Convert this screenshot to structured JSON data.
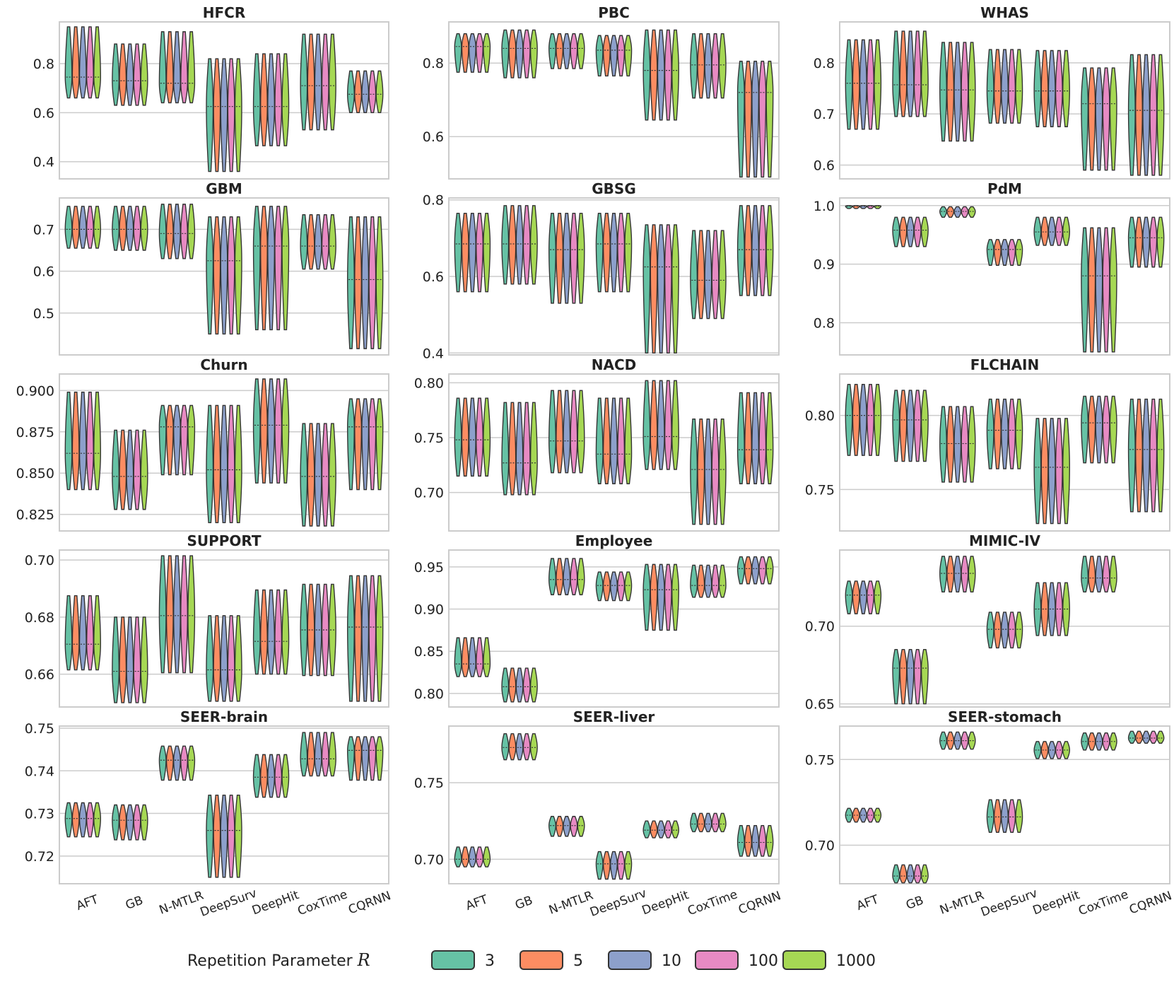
{
  "figure": {
    "legend_title": "Repetition Parameter ",
    "legend_symbol": "R",
    "series": [
      {
        "name": "3",
        "color": "#66c2a5"
      },
      {
        "name": "5",
        "color": "#fc8d62"
      },
      {
        "name": "10",
        "color": "#8da0cb"
      },
      {
        "name": "100",
        "color": "#e78ac3"
      },
      {
        "name": "1000",
        "color": "#a6d854"
      }
    ],
    "categories": [
      "AFT",
      "GB",
      "N-MTLR",
      "DeepSurv",
      "DeepHit",
      "CoxTime",
      "CQRNN"
    ]
  },
  "chart_data": [
    {
      "type": "violin",
      "title": "HFCR",
      "ylim": [
        0.33,
        0.97
      ],
      "yticks": [
        0.4,
        0.6,
        0.8
      ],
      "yticklabels": [
        "0.4",
        "0.6",
        "0.8"
      ],
      "ylabel": "",
      "violins": [
        {
          "min": 0.66,
          "max": 0.95,
          "median": 0.745
        },
        {
          "min": 0.63,
          "max": 0.88,
          "median": 0.73
        },
        {
          "min": 0.64,
          "max": 0.93,
          "median": 0.72
        },
        {
          "min": 0.36,
          "max": 0.82,
          "median": 0.625
        },
        {
          "min": 0.465,
          "max": 0.84,
          "median": 0.625
        },
        {
          "min": 0.53,
          "max": 0.92,
          "median": 0.71
        },
        {
          "min": 0.6,
          "max": 0.77,
          "median": 0.675
        }
      ]
    },
    {
      "type": "violin",
      "title": "PBC",
      "ylim": [
        0.485,
        0.912
      ],
      "yticks": [
        0.6,
        0.8
      ],
      "yticklabels": [
        "0.6",
        "0.8"
      ],
      "ylabel": "",
      "violins": [
        {
          "min": 0.775,
          "max": 0.88,
          "median": 0.845
        },
        {
          "min": 0.76,
          "max": 0.89,
          "median": 0.84
        },
        {
          "min": 0.785,
          "max": 0.88,
          "median": 0.84
        },
        {
          "min": 0.765,
          "max": 0.875,
          "median": 0.835
        },
        {
          "min": 0.645,
          "max": 0.89,
          "median": 0.78
        },
        {
          "min": 0.705,
          "max": 0.88,
          "median": 0.795
        },
        {
          "min": 0.49,
          "max": 0.805,
          "median": 0.72
        }
      ]
    },
    {
      "type": "violin",
      "title": "WHAS",
      "ylim": [
        0.573,
        0.88
      ],
      "yticks": [
        0.6,
        0.7,
        0.8
      ],
      "yticklabels": [
        "0.6",
        "0.7",
        "0.8"
      ],
      "ylabel": "",
      "violins": [
        {
          "min": 0.67,
          "max": 0.845,
          "median": 0.76
        },
        {
          "min": 0.695,
          "max": 0.862,
          "median": 0.757
        },
        {
          "min": 0.647,
          "max": 0.84,
          "median": 0.747
        },
        {
          "min": 0.682,
          "max": 0.826,
          "median": 0.745
        },
        {
          "min": 0.675,
          "max": 0.824,
          "median": 0.745
        },
        {
          "min": 0.59,
          "max": 0.79,
          "median": 0.72
        },
        {
          "min": 0.58,
          "max": 0.816,
          "median": 0.707
        }
      ]
    },
    {
      "type": "violin",
      "title": "GBM",
      "ylim": [
        0.4,
        0.775
      ],
      "yticks": [
        0.5,
        0.6,
        0.7
      ],
      "yticklabels": [
        "0.5",
        "0.6",
        "0.7"
      ],
      "ylabel": "",
      "violins": [
        {
          "min": 0.655,
          "max": 0.755,
          "median": 0.7
        },
        {
          "min": 0.65,
          "max": 0.755,
          "median": 0.7
        },
        {
          "min": 0.63,
          "max": 0.76,
          "median": 0.69
        },
        {
          "min": 0.45,
          "max": 0.73,
          "median": 0.625
        },
        {
          "min": 0.46,
          "max": 0.755,
          "median": 0.66
        },
        {
          "min": 0.605,
          "max": 0.735,
          "median": 0.66
        },
        {
          "min": 0.415,
          "max": 0.73,
          "median": 0.58
        }
      ]
    },
    {
      "type": "violin",
      "title": "GBSG",
      "ylim": [
        0.395,
        0.805
      ],
      "yticks": [
        0.4,
        0.6,
        0.8
      ],
      "yticklabels": [
        "0.4",
        "0.6",
        "0.8"
      ],
      "ylabel": "",
      "violins": [
        {
          "min": 0.56,
          "max": 0.765,
          "median": 0.685
        },
        {
          "min": 0.58,
          "max": 0.785,
          "median": 0.685
        },
        {
          "min": 0.53,
          "max": 0.765,
          "median": 0.67
        },
        {
          "min": 0.56,
          "max": 0.765,
          "median": 0.685
        },
        {
          "min": 0.4,
          "max": 0.735,
          "median": 0.625
        },
        {
          "min": 0.49,
          "max": 0.72,
          "median": 0.59
        },
        {
          "min": 0.55,
          "max": 0.785,
          "median": 0.67
        }
      ]
    },
    {
      "type": "violin",
      "title": "PdM",
      "ylim": [
        0.745,
        1.013
      ],
      "yticks": [
        0.8,
        0.9,
        1.0
      ],
      "yticklabels": [
        "0.8",
        "0.9",
        "1.0"
      ],
      "ylabel": "",
      "violins": [
        {
          "min": 0.995,
          "max": 1.0,
          "median": 0.999
        },
        {
          "min": 0.93,
          "max": 0.98,
          "median": 0.958
        },
        {
          "min": 0.98,
          "max": 0.998,
          "median": 0.99
        },
        {
          "min": 0.898,
          "max": 0.942,
          "median": 0.925
        },
        {
          "min": 0.932,
          "max": 0.98,
          "median": 0.955
        },
        {
          "min": 0.75,
          "max": 0.962,
          "median": 0.88
        },
        {
          "min": 0.895,
          "max": 0.98,
          "median": 0.945
        }
      ]
    },
    {
      "type": "violin",
      "title": "Churn",
      "ylim": [
        0.815,
        0.91
      ],
      "yticks": [
        0.825,
        0.85,
        0.875,
        0.9
      ],
      "yticklabels": [
        "0.825",
        "0.850",
        "0.875",
        "0.900"
      ],
      "ylabel": "",
      "violins": [
        {
          "min": 0.84,
          "max": 0.899,
          "median": 0.862
        },
        {
          "min": 0.828,
          "max": 0.876,
          "median": 0.848
        },
        {
          "min": 0.849,
          "max": 0.891,
          "median": 0.878
        },
        {
          "min": 0.82,
          "max": 0.891,
          "median": 0.852
        },
        {
          "min": 0.844,
          "max": 0.907,
          "median": 0.879
        },
        {
          "min": 0.818,
          "max": 0.88,
          "median": 0.848
        },
        {
          "min": 0.84,
          "max": 0.895,
          "median": 0.878
        }
      ]
    },
    {
      "type": "violin",
      "title": "NACD",
      "ylim": [
        0.665,
        0.808
      ],
      "yticks": [
        0.7,
        0.75,
        0.8
      ],
      "yticklabels": [
        "0.70",
        "0.75",
        "0.80"
      ],
      "ylabel": "",
      "violins": [
        {
          "min": 0.715,
          "max": 0.786,
          "median": 0.748
        },
        {
          "min": 0.698,
          "max": 0.782,
          "median": 0.727
        },
        {
          "min": 0.718,
          "max": 0.793,
          "median": 0.747
        },
        {
          "min": 0.708,
          "max": 0.786,
          "median": 0.735
        },
        {
          "min": 0.721,
          "max": 0.802,
          "median": 0.751
        },
        {
          "min": 0.671,
          "max": 0.767,
          "median": 0.721
        },
        {
          "min": 0.708,
          "max": 0.791,
          "median": 0.739
        }
      ]
    },
    {
      "type": "violin",
      "title": "FLCHAIN",
      "ylim": [
        0.722,
        0.828
      ],
      "yticks": [
        0.75,
        0.8
      ],
      "yticklabels": [
        "0.75",
        "0.80"
      ],
      "ylabel": "",
      "violins": [
        {
          "min": 0.773,
          "max": 0.821,
          "median": 0.8
        },
        {
          "min": 0.769,
          "max": 0.817,
          "median": 0.797
        },
        {
          "min": 0.755,
          "max": 0.806,
          "median": 0.781
        },
        {
          "min": 0.764,
          "max": 0.811,
          "median": 0.79
        },
        {
          "min": 0.727,
          "max": 0.798,
          "median": 0.765
        },
        {
          "min": 0.768,
          "max": 0.813,
          "median": 0.795
        },
        {
          "min": 0.735,
          "max": 0.811,
          "median": 0.777
        }
      ]
    },
    {
      "type": "violin",
      "title": "SUPPORT",
      "ylim": [
        0.6485,
        0.7035
      ],
      "yticks": [
        0.66,
        0.68,
        0.7
      ],
      "yticklabels": [
        "0.66",
        "0.68",
        "0.70"
      ],
      "ylabel": "",
      "violins": [
        {
          "min": 0.6615,
          "max": 0.6875,
          "median": 0.6705
        },
        {
          "min": 0.65,
          "max": 0.68,
          "median": 0.661
        },
        {
          "min": 0.6605,
          "max": 0.7015,
          "median": 0.6805
        },
        {
          "min": 0.6505,
          "max": 0.6805,
          "median": 0.6615
        },
        {
          "min": 0.66,
          "max": 0.6895,
          "median": 0.6715
        },
        {
          "min": 0.6595,
          "max": 0.6915,
          "median": 0.6755
        },
        {
          "min": 0.6505,
          "max": 0.6945,
          "median": 0.6765
        }
      ]
    },
    {
      "type": "violin",
      "title": "Employee",
      "ylim": [
        0.784,
        0.97
      ],
      "yticks": [
        0.8,
        0.85,
        0.9,
        0.95
      ],
      "yticklabels": [
        "0.80",
        "0.85",
        "0.90",
        "0.95"
      ],
      "ylabel": "",
      "violins": [
        {
          "min": 0.82,
          "max": 0.866,
          "median": 0.835
        },
        {
          "min": 0.79,
          "max": 0.83,
          "median": 0.808
        },
        {
          "min": 0.917,
          "max": 0.96,
          "median": 0.935
        },
        {
          "min": 0.91,
          "max": 0.944,
          "median": 0.928
        },
        {
          "min": 0.875,
          "max": 0.953,
          "median": 0.923
        },
        {
          "min": 0.914,
          "max": 0.952,
          "median": 0.928
        },
        {
          "min": 0.93,
          "max": 0.962,
          "median": 0.948
        }
      ]
    },
    {
      "type": "violin",
      "title": "MIMIC-IV",
      "ylim": [
        0.648,
        0.749
      ],
      "yticks": [
        0.65,
        0.7
      ],
      "yticklabels": [
        "0.65",
        "0.70"
      ],
      "ylabel": "",
      "violins": [
        {
          "min": 0.708,
          "max": 0.729,
          "median": 0.72
        },
        {
          "min": 0.65,
          "max": 0.685,
          "median": 0.673
        },
        {
          "min": 0.722,
          "max": 0.745,
          "median": 0.734
        },
        {
          "min": 0.686,
          "max": 0.709,
          "median": 0.698
        },
        {
          "min": 0.694,
          "max": 0.728,
          "median": 0.711
        },
        {
          "min": 0.722,
          "max": 0.745,
          "median": 0.731
        }
      ]
    },
    {
      "type": "violin",
      "title": "SEER-brain",
      "ylim": [
        0.7135,
        0.7505
      ],
      "yticks": [
        0.72,
        0.73,
        0.74,
        0.75
      ],
      "yticklabels": [
        "0.72",
        "0.73",
        "0.74",
        "0.75"
      ],
      "ylabel": "",
      "violins": [
        {
          "min": 0.7245,
          "max": 0.7325,
          "median": 0.7288
        },
        {
          "min": 0.7238,
          "max": 0.732,
          "median": 0.7284
        },
        {
          "min": 0.7378,
          "max": 0.7458,
          "median": 0.7425
        },
        {
          "min": 0.715,
          "max": 0.7343,
          "median": 0.726
        },
        {
          "min": 0.7338,
          "max": 0.7438,
          "median": 0.7385
        },
        {
          "min": 0.7388,
          "max": 0.749,
          "median": 0.7428
        },
        {
          "min": 0.7378,
          "max": 0.748,
          "median": 0.7448
        }
      ]
    },
    {
      "type": "violin",
      "title": "SEER-liver",
      "ylim": [
        0.684,
        0.787
      ],
      "yticks": [
        0.7,
        0.75
      ],
      "yticklabels": [
        "0.70",
        "0.75"
      ],
      "ylabel": "",
      "violins": [
        {
          "min": 0.695,
          "max": 0.708,
          "median": 0.7
        },
        {
          "min": 0.765,
          "max": 0.782,
          "median": 0.773
        },
        {
          "min": 0.715,
          "max": 0.728,
          "median": 0.722
        },
        {
          "min": 0.687,
          "max": 0.705,
          "median": 0.697
        },
        {
          "min": 0.714,
          "max": 0.725,
          "median": 0.719
        },
        {
          "min": 0.718,
          "max": 0.73,
          "median": 0.723
        },
        {
          "min": 0.702,
          "max": 0.722,
          "median": 0.711
        }
      ]
    },
    {
      "type": "violin",
      "title": "SEER-stomach",
      "ylim": [
        0.6775,
        0.7695
      ],
      "yticks": [
        0.7,
        0.75
      ],
      "yticklabels": [
        "0.70",
        "0.75"
      ],
      "ylabel": "",
      "violins": [
        {
          "min": 0.7135,
          "max": 0.7215,
          "median": 0.7175
        },
        {
          "min": 0.678,
          "max": 0.6885,
          "median": 0.682
        },
        {
          "min": 0.756,
          "max": 0.766,
          "median": 0.761
        },
        {
          "min": 0.7075,
          "max": 0.7265,
          "median": 0.7165
        },
        {
          "min": 0.7505,
          "max": 0.7605,
          "median": 0.7555
        },
        {
          "min": 0.7555,
          "max": 0.7655,
          "median": 0.7605
        },
        {
          "min": 0.7595,
          "max": 0.7665,
          "median": 0.7625
        }
      ]
    }
  ]
}
